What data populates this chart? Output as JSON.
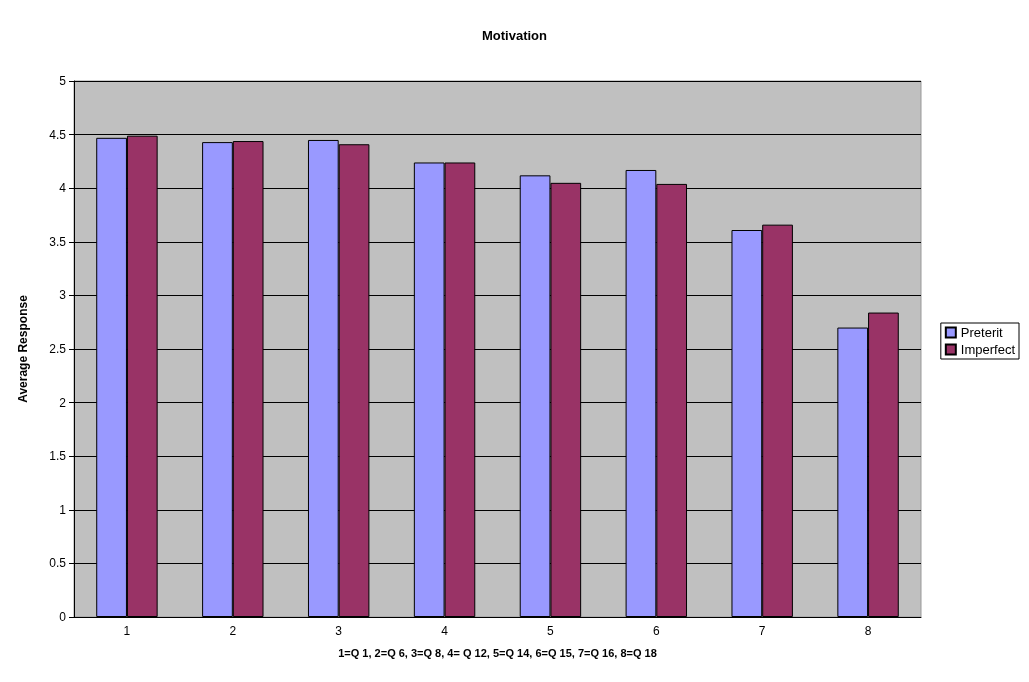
{
  "chart_data": {
    "type": "bar",
    "title": "Motivation",
    "xlabel": "1=Q 1, 2=Q 6, 3=Q 8, 4= Q 12, 5=Q 14, 6=Q 15, 7=Q 16, 8=Q 18",
    "ylabel": "Average Response",
    "categories": [
      "1",
      "2",
      "3",
      "4",
      "5",
      "6",
      "7",
      "8"
    ],
    "series": [
      {
        "name": "Preterit",
        "color": "#9999ff",
        "values": [
          4.47,
          4.43,
          4.45,
          4.24,
          4.12,
          4.17,
          3.61,
          2.7
        ]
      },
      {
        "name": "Imperfect",
        "color": "#993366",
        "values": [
          4.49,
          4.44,
          4.41,
          4.24,
          4.05,
          4.04,
          3.66,
          2.84
        ]
      }
    ],
    "ylim": [
      0,
      5
    ],
    "yticks": [
      0,
      0.5,
      1,
      1.5,
      2,
      2.5,
      3,
      3.5,
      4,
      4.5,
      5
    ],
    "grid": "y",
    "legend": "right"
  }
}
